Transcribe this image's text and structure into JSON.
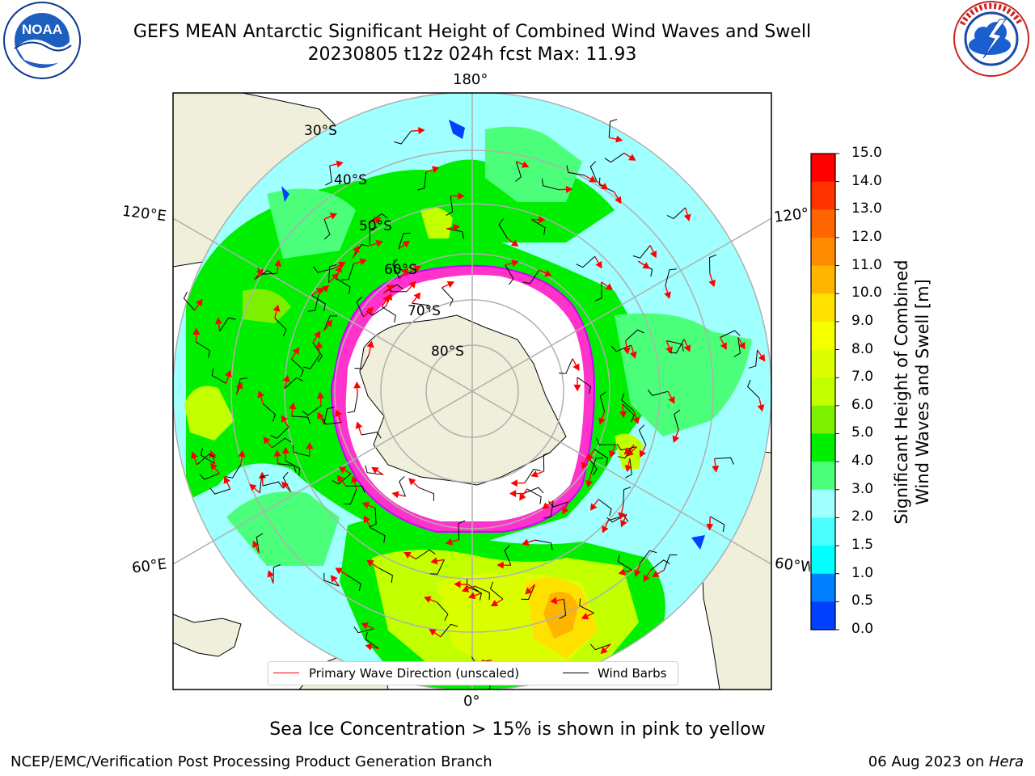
{
  "header": {
    "title_line1": "GEFS MEAN Antarctic Significant Height of Combined Wind Waves and Swell",
    "title_line2": "20230805 t12z 024h fcst   Max: 11.93"
  },
  "map": {
    "lon_labels": [
      "180°",
      "120°E",
      "120°",
      "60°E",
      "60°W",
      "0°"
    ],
    "lat_labels": [
      "30°S",
      "40°S",
      "50°S",
      "60°S",
      "70°S",
      "80°S"
    ]
  },
  "colorbar": {
    "label_line1": "Significant Height of Combined",
    "label_line2": "Wind Waves and Swell [m]",
    "ticks": [
      "15.0",
      "14.0",
      "13.0",
      "12.0",
      "11.0",
      "10.0",
      "9.0",
      "8.0",
      "7.0",
      "6.0",
      "5.0",
      "4.0",
      "3.0",
      "2.0",
      "1.5",
      "1.0",
      "0.5",
      "0.0"
    ],
    "colors": [
      "#ff0000",
      "#ff3300",
      "#ff6600",
      "#ff8c00",
      "#ffb400",
      "#ffe100",
      "#f5ff00",
      "#dcff00",
      "#c2ff00",
      "#7df000",
      "#00ee00",
      "#4cff7a",
      "#a0ffff",
      "#4cffff",
      "#00ffff",
      "#0080ff",
      "#0040ff",
      "#0000ff"
    ]
  },
  "legend": {
    "wave_direction": "Primary Wave Direction (unscaled)",
    "wind_barbs": "Wind Barbs",
    "wave_color": "#ff0000",
    "barb_color": "#000000"
  },
  "notes": {
    "sea_ice": "Sea Ice Concentration > 15% is shown in pink to yellow"
  },
  "footer": {
    "left": "NCEP/EMC/Verification Post Processing Product Generation Branch",
    "date": "06 Aug 2023 on ",
    "host": "Hera"
  },
  "logos": {
    "noaa": "NOAA",
    "nws": "NATIONAL WEATHER SERVICE"
  },
  "colors": {
    "land": "#efefdc",
    "ice_edge": "#ff33cc"
  }
}
